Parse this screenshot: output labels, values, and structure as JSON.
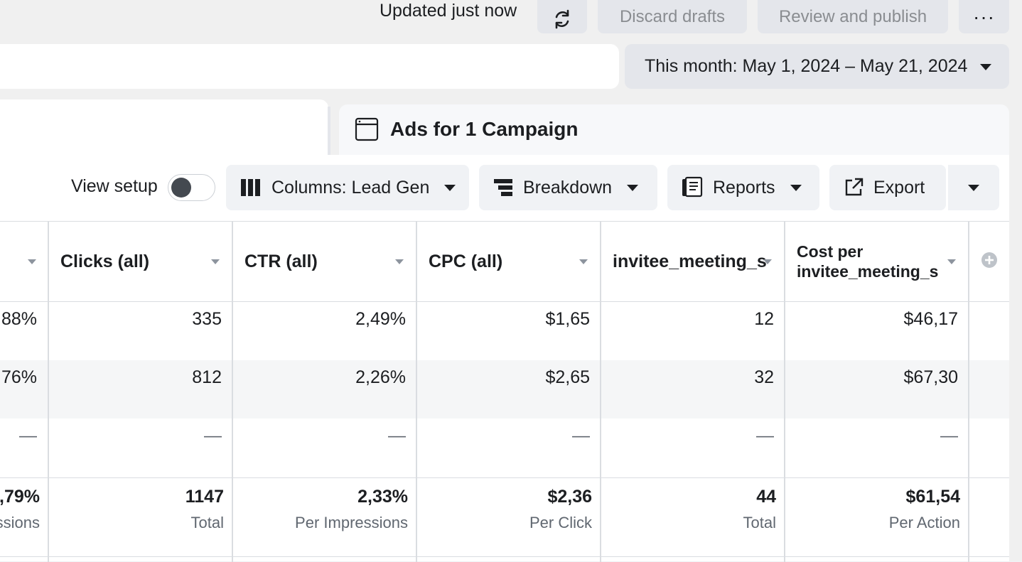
{
  "topbar": {
    "updated": "Updated just now",
    "discard": "Discard drafts",
    "review": "Review and publish",
    "more": "···"
  },
  "date_range": "This month: May 1, 2024 – May 21, 2024",
  "tab": {
    "title": "Ads for 1 Campaign"
  },
  "toolbar": {
    "view_setup": "View setup",
    "columns": "Columns: Lead Gen",
    "breakdown": "Breakdown",
    "reports": "Reports",
    "export": "Export"
  },
  "table": {
    "headers": [
      "Clicks (all)",
      "CTR (all)",
      "CPC (all)",
      "invitee_meeting_s",
      "Cost per",
      "invitee_meeting_s"
    ],
    "rows": [
      {
        "first": ",88%",
        "clicks": "335",
        "ctr": "2,49%",
        "cpc": "$1,65",
        "invitee": "12",
        "cost": "$46,17"
      },
      {
        "first": ",76%",
        "clicks": "812",
        "ctr": "2,26%",
        "cpc": "$2,65",
        "invitee": "32",
        "cost": "$67,30"
      },
      {
        "first": "—",
        "clicks": "—",
        "ctr": "—",
        "cpc": "—",
        "invitee": "—",
        "cost": "—"
      }
    ],
    "totals": {
      "first": {
        "value": "),79%",
        "sub": "ssions"
      },
      "clicks": {
        "value": "1147",
        "sub": "Total"
      },
      "ctr": {
        "value": "2,33%",
        "sub": "Per Impressions"
      },
      "cpc": {
        "value": "$2,36",
        "sub": "Per Click"
      },
      "invitee": {
        "value": "44",
        "sub": "Total"
      },
      "cost": {
        "value": "$61,54",
        "sub": "Per Action"
      }
    }
  }
}
